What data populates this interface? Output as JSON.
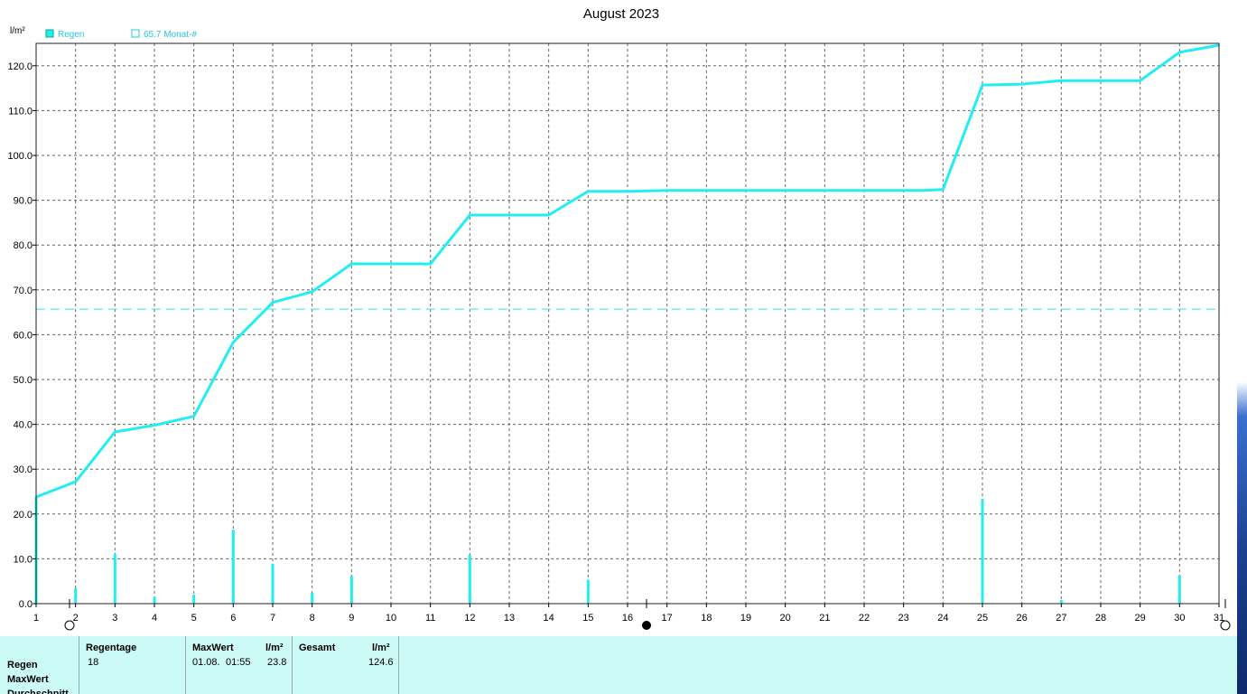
{
  "chart_data": {
    "type": "line",
    "title": "August 2023",
    "ylabel": "l/m²",
    "xlabel": "",
    "ylim": [
      0,
      125
    ],
    "xlim": [
      1,
      31
    ],
    "grid": true,
    "legend_position": "top-left",
    "x_ticks": [
      "1",
      "2",
      "3",
      "4",
      "5",
      "6",
      "7",
      "8",
      "9",
      "10",
      "11",
      "12",
      "13",
      "14",
      "15",
      "16",
      "17",
      "18",
      "19",
      "20",
      "21",
      "22",
      "23",
      "24",
      "25",
      "26",
      "27",
      "28",
      "29",
      "30",
      "31"
    ],
    "y_ticks": [
      "0.0",
      "10.0",
      "20.0",
      "30.0",
      "40.0",
      "50.0",
      "60.0",
      "70.0",
      "80.0",
      "90.0",
      "100.0",
      "110.0",
      "120.0"
    ],
    "series": [
      {
        "name": "Regen",
        "kind": "cumulative-line",
        "color": "#22eef2",
        "points": [
          [
            1,
            23.8
          ],
          [
            2,
            27.2
          ],
          [
            3,
            38.3
          ],
          [
            4,
            39.8
          ],
          [
            5,
            41.8
          ],
          [
            6,
            58.3
          ],
          [
            7,
            67.2
          ],
          [
            8,
            69.6
          ],
          [
            9,
            75.8
          ],
          [
            10,
            75.8
          ],
          [
            11,
            75.8
          ],
          [
            12,
            86.7
          ],
          [
            13,
            86.7
          ],
          [
            14,
            86.7
          ],
          [
            15,
            92.0
          ],
          [
            16,
            92.0
          ],
          [
            17,
            92.2
          ],
          [
            18,
            92.2
          ],
          [
            19,
            92.2
          ],
          [
            20,
            92.2
          ],
          [
            21,
            92.2
          ],
          [
            22,
            92.2
          ],
          [
            23,
            92.2
          ],
          [
            23.5,
            92.2
          ],
          [
            24,
            92.4
          ],
          [
            25,
            115.7
          ],
          [
            26,
            115.9
          ],
          [
            27,
            116.7
          ],
          [
            28,
            116.7
          ],
          [
            29,
            116.7
          ],
          [
            30,
            123.0
          ],
          [
            31,
            124.6
          ]
        ]
      },
      {
        "name": "Regen",
        "kind": "daily-bars",
        "color": "#22eef2",
        "values": [
          [
            1,
            23.8
          ],
          [
            2,
            3.4
          ],
          [
            3,
            11.1
          ],
          [
            4,
            1.5
          ],
          [
            5,
            2.0
          ],
          [
            6,
            16.5
          ],
          [
            7,
            8.9
          ],
          [
            8,
            2.4
          ],
          [
            9,
            6.2
          ],
          [
            12,
            10.9
          ],
          [
            15,
            5.3
          ],
          [
            17,
            0.2
          ],
          [
            24,
            0.2
          ],
          [
            25,
            23.3
          ],
          [
            26,
            0.2
          ],
          [
            27,
            0.8
          ],
          [
            30,
            6.3
          ]
        ]
      },
      {
        "name": "65.7 Monat-#",
        "kind": "reference-line",
        "color": "#22eef2",
        "value": 65.7
      }
    ]
  },
  "legend": {
    "regen_label": "Regen",
    "monat_label": "65.7 Monat-#"
  },
  "stats": {
    "row_labels": [
      "Regen",
      "MaxWert",
      "Durchschnitt"
    ],
    "regentage": {
      "header": "Regentage",
      "value": "18"
    },
    "maxwert": {
      "header": "MaxWert",
      "unit": "l/m²",
      "date": "01.08.",
      "time": "01:55",
      "value": "23.8"
    },
    "gesamt": {
      "header": "Gesamt",
      "unit": "l/m²",
      "value": "124.6"
    }
  },
  "colors": {
    "series": "#22eef2",
    "panel": "#ccfaf6",
    "grid": "#555555"
  }
}
